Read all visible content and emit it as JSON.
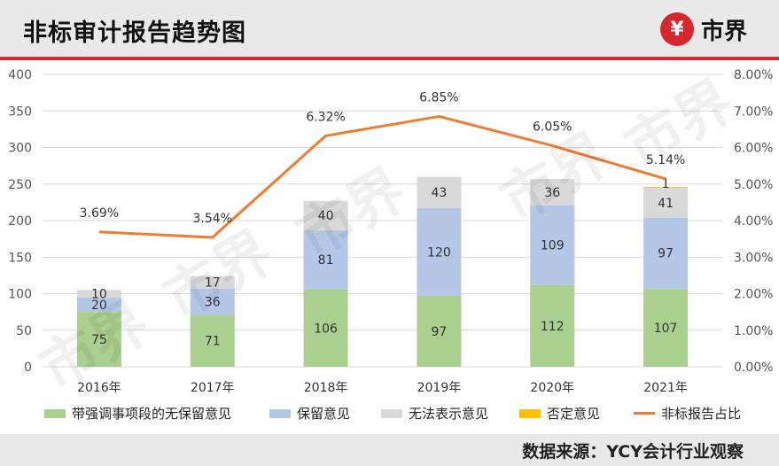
{
  "header": {
    "title": "非标审计报告趋势图",
    "brand_name": "市界",
    "brand_icon": "yuan-coin-icon"
  },
  "footer": {
    "source": "数据来源：YCY会计行业观察"
  },
  "watermark": "市界",
  "colors": {
    "green": "#a9d08e",
    "blue": "#b4c7e7",
    "gray": "#d9d9d9",
    "yellow": "#ffc000",
    "orange": "#ed7d31",
    "brand_red": "#d8262e"
  },
  "chart_data": {
    "type": "bar",
    "stacked": true,
    "title": "非标审计报告趋势图",
    "categories": [
      "2016年",
      "2017年",
      "2018年",
      "2019年",
      "2020年",
      "2021年"
    ],
    "series": [
      {
        "name": "带强调事项段的无保留意见",
        "type": "bar",
        "color": "#a9d08e",
        "values": [
          75,
          71,
          106,
          97,
          112,
          107
        ]
      },
      {
        "name": "保留意见",
        "type": "bar",
        "color": "#b4c7e7",
        "values": [
          20,
          36,
          81,
          120,
          109,
          97
        ]
      },
      {
        "name": "无法表示意见",
        "type": "bar",
        "color": "#d9d9d9",
        "values": [
          10,
          17,
          40,
          43,
          36,
          41
        ]
      },
      {
        "name": "否定意见",
        "type": "bar",
        "color": "#ffc000",
        "values": [
          0,
          0,
          0,
          0,
          0,
          1
        ]
      },
      {
        "name": "非标报告占比",
        "type": "line",
        "axis": "right",
        "color": "#ed7d31",
        "values": [
          3.69,
          3.54,
          6.32,
          6.85,
          6.05,
          5.14
        ],
        "labels": [
          "3.69%",
          "3.54%",
          "6.32%",
          "6.85%",
          "6.05%",
          "5.14%"
        ]
      }
    ],
    "y_left": {
      "min": 0,
      "max": 400,
      "step": 50,
      "ticks": [
        "0",
        "50",
        "100",
        "150",
        "200",
        "250",
        "300",
        "350",
        "400"
      ]
    },
    "y_right": {
      "min": 0,
      "max": 8,
      "step": 1,
      "ticks": [
        "0.00%",
        "1.00%",
        "2.00%",
        "3.00%",
        "4.00%",
        "5.00%",
        "6.00%",
        "7.00%",
        "8.00%"
      ]
    },
    "legend": "bottom",
    "grid": true
  }
}
